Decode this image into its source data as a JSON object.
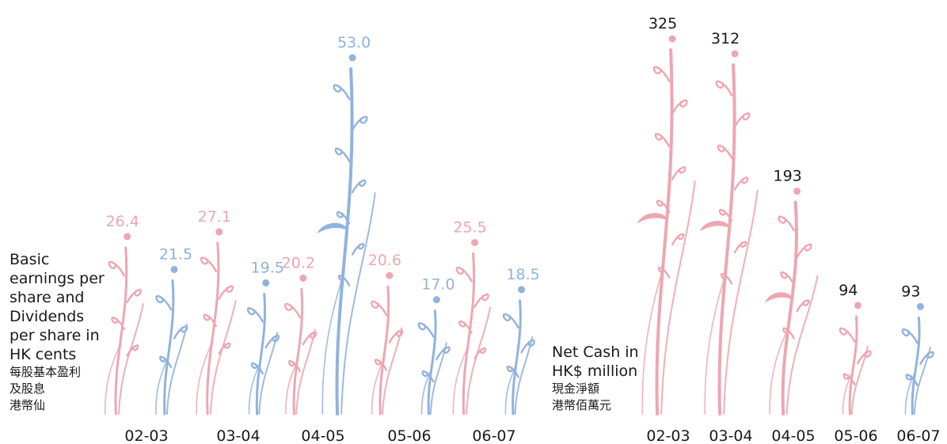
{
  "colors": {
    "pink": "#eea6b0",
    "blue": "#92b2dd",
    "dark": "#1a1a1a"
  },
  "captions": {
    "left": {
      "en": "Basic\nearnings per\nshare and\nDividends\nper share in\nHK cents",
      "zh": "每股基本盈利\n及股息\n港幣仙"
    },
    "right": {
      "en": "Net Cash in\nHK$ million",
      "zh": "現金淨額\n港幣佰萬元"
    }
  },
  "chart_data": [
    {
      "type": "bar",
      "categories": [
        "02-03",
        "03-04",
        "04-05",
        "05-06",
        "06-07"
      ],
      "series": [
        {
          "name": "Basic earnings per share",
          "color": "#eea6b0",
          "values": [
            26.4,
            27.1,
            20.2,
            20.6,
            25.5
          ]
        },
        {
          "name": "Dividends per share",
          "color": "#92b2dd",
          "values": [
            21.5,
            19.5,
            53.0,
            17.0,
            18.5
          ]
        }
      ],
      "value_labels": [
        [
          "26.4",
          "27.1",
          "20.2",
          "20.6",
          "25.5"
        ],
        [
          "21.5",
          "19.5",
          "53.0",
          "17.0",
          "18.5"
        ]
      ],
      "ylabel": "Basic earnings per share and Dividends per share in HK cents",
      "ylim": [
        0,
        55
      ]
    },
    {
      "type": "bar",
      "categories": [
        "02-03",
        "03-04",
        "04-05",
        "05-06",
        "06-07"
      ],
      "series": [
        {
          "name": "Net Cash",
          "values": [
            325,
            312,
            193,
            94,
            93
          ],
          "colors": [
            "#eea6b0",
            "#eea6b0",
            "#eea6b0",
            "#eea6b0",
            "#92b2dd"
          ]
        }
      ],
      "value_labels": [
        [
          "325",
          "312",
          "193",
          "94",
          "93"
        ]
      ],
      "ylabel": "Net Cash in HK$ million",
      "ylim": [
        0,
        330
      ]
    }
  ]
}
